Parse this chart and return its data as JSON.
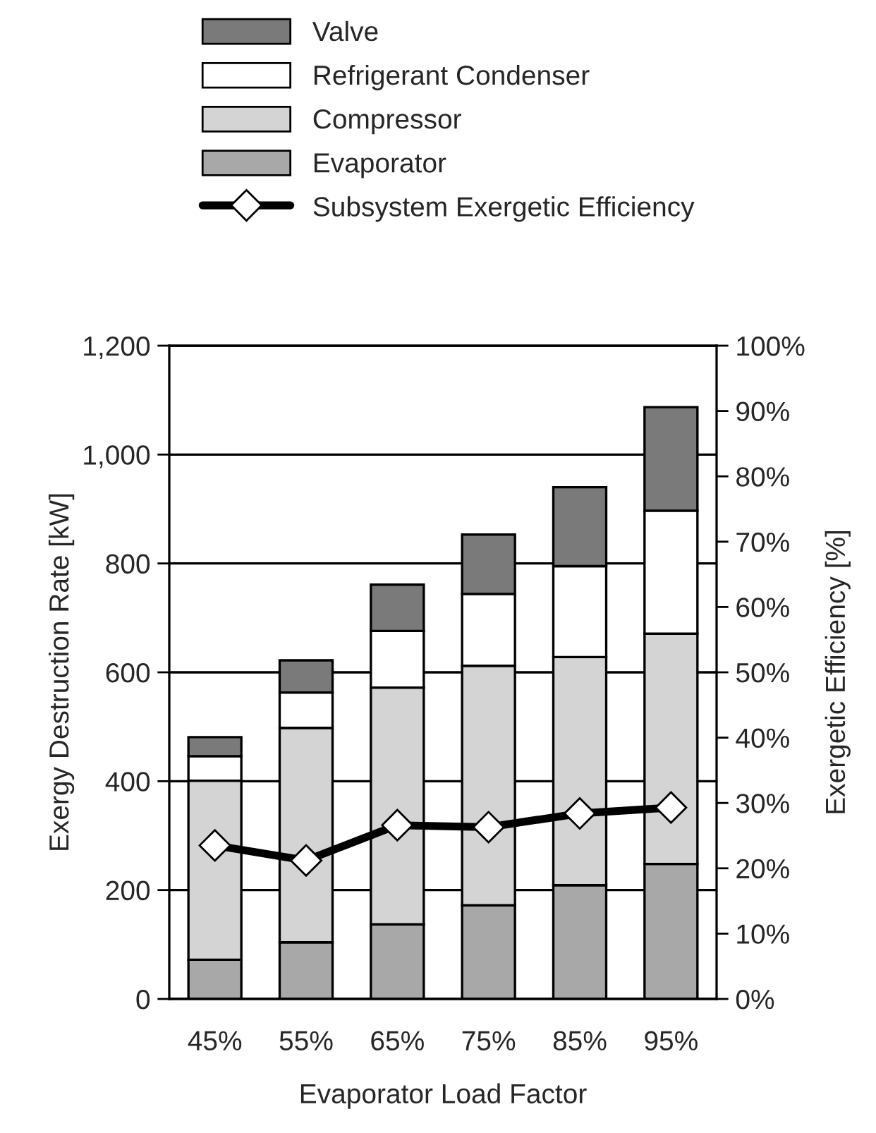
{
  "chart_data": {
    "type": "bar",
    "stacked": true,
    "xlabel": "Evaporator Load Factor",
    "ylabel": "Exergy Destruction Rate [kW]",
    "y2label": "Exergetic Efficiency [%]",
    "categories": [
      "45%",
      "55%",
      "65%",
      "75%",
      "85%",
      "95%"
    ],
    "series": [
      {
        "name": "Evaporator",
        "color": "#a8a8a8",
        "values": [
          72,
          104,
          137,
          172,
          209,
          248
        ]
      },
      {
        "name": "Compressor",
        "color": "#d4d4d4",
        "values": [
          329,
          394,
          435,
          440,
          419,
          423
        ]
      },
      {
        "name": "Refrigerant Condenser",
        "color": "#ffffff",
        "values": [
          45,
          65,
          104,
          132,
          167,
          226
        ]
      },
      {
        "name": "Valve",
        "color": "#7a7a7a",
        "values": [
          35,
          59,
          85,
          109,
          145,
          190
        ]
      },
      {
        "name": "Subsystem Exergetic Efficiency",
        "type": "line",
        "axis": "y2",
        "color": "#000000",
        "marker": "diamond",
        "values": [
          23.5,
          21.2,
          26.6,
          26.3,
          28.4,
          29.3
        ]
      }
    ],
    "ylim": [
      0,
      1200
    ],
    "yticks": [
      0,
      200,
      400,
      600,
      800,
      {
        "value": 1000,
        "label": "1,000"
      },
      {
        "value": 1200,
        "label": "1,200"
      }
    ],
    "y2lim": [
      0,
      100
    ],
    "y2ticks": [
      {
        "value": 0,
        "label": "0%"
      },
      {
        "value": 10,
        "label": "10%"
      },
      {
        "value": 20,
        "label": "20%"
      },
      {
        "value": 30,
        "label": "30%"
      },
      {
        "value": 40,
        "label": "40%"
      },
      {
        "value": 50,
        "label": "50%"
      },
      {
        "value": 60,
        "label": "60%"
      },
      {
        "value": 70,
        "label": "70%"
      },
      {
        "value": 80,
        "label": "80%"
      },
      {
        "value": 90,
        "label": "90%"
      },
      {
        "value": 100,
        "label": "100%"
      }
    ],
    "grid": "y",
    "legend": "top"
  }
}
